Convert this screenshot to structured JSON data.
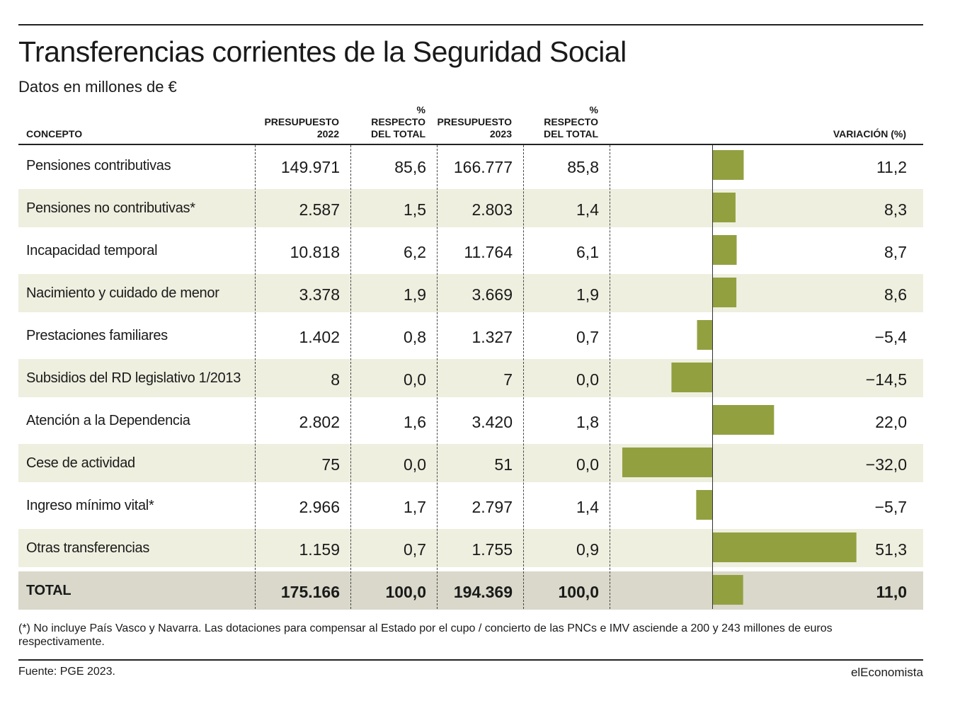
{
  "title": "Transferencias corrientes de la Seguridad Social",
  "subtitle": "Datos en millones de €",
  "headers": {
    "concepto": "CONCEPTO",
    "p2022_l1": "PRESUPUESTO",
    "p2022_l2": "2022",
    "pct2022_l1": "%",
    "pct2022_l2": "RESPECTO",
    "pct2022_l3": "DEL TOTAL",
    "p2023_l1": "PRESUPUESTO",
    "p2023_l2": "2023",
    "pct2023_l1": "%",
    "pct2023_l2": "RESPECTO",
    "pct2023_l3": "DEL TOTAL",
    "variacion": "VARIACIÓN (%)"
  },
  "bar_color": "#93a040",
  "chart_data": {
    "type": "table",
    "columns": [
      "CONCEPTO",
      "PRESUPUESTO 2022",
      "% RESPECTO DEL TOTAL",
      "PRESUPUESTO 2023",
      "% RESPECTO DEL TOTAL",
      "VARIACIÓN (%)"
    ],
    "rows": [
      {
        "concepto": "Pensiones contributivas",
        "p2022": "149.971",
        "pct2022": "85,6",
        "p2023": "166.777",
        "pct2023": "85,8",
        "var_label": "11,2",
        "var": 11.2
      },
      {
        "concepto": "Pensiones no contributivas*",
        "p2022": "2.587",
        "pct2022": "1,5",
        "p2023": "2.803",
        "pct2023": "1,4",
        "var_label": "8,3",
        "var": 8.3
      },
      {
        "concepto": "Incapacidad temporal",
        "p2022": "10.818",
        "pct2022": "6,2",
        "p2023": "11.764",
        "pct2023": "6,1",
        "var_label": "8,7",
        "var": 8.7
      },
      {
        "concepto": "Nacimiento y cuidado de menor",
        "p2022": "3.378",
        "pct2022": "1,9",
        "p2023": "3.669",
        "pct2023": "1,9",
        "var_label": "8,6",
        "var": 8.6
      },
      {
        "concepto": "Prestaciones familiares",
        "p2022": "1.402",
        "pct2022": "0,8",
        "p2023": "1.327",
        "pct2023": "0,7",
        "var_label": "−5,4",
        "var": -5.4
      },
      {
        "concepto": "Subsidios del RD legislativo 1/2013",
        "p2022": "8",
        "pct2022": "0,0",
        "p2023": "7",
        "pct2023": "0,0",
        "var_label": "−14,5",
        "var": -14.5
      },
      {
        "concepto": "Atención a la Dependencia",
        "p2022": "2.802",
        "pct2022": "1,6",
        "p2023": "3.420",
        "pct2023": "1,8",
        "var_label": "22,0",
        "var": 22.0
      },
      {
        "concepto": "Cese de actividad",
        "p2022": "75",
        "pct2022": "0,0",
        "p2023": "51",
        "pct2023": "0,0",
        "var_label": "−32,0",
        "var": -32.0
      },
      {
        "concepto": "Ingreso mínimo vital*",
        "p2022": "2.966",
        "pct2022": "1,7",
        "p2023": "2.797",
        "pct2023": "1,4",
        "var_label": "−5,7",
        "var": -5.7
      },
      {
        "concepto": "Otras transferencias",
        "p2022": "1.159",
        "pct2022": "0,7",
        "p2023": "1.755",
        "pct2023": "0,9",
        "var_label": "51,3",
        "var": 51.3
      },
      {
        "concepto": "TOTAL",
        "p2022": "175.166",
        "pct2022": "100,0",
        "p2023": "194.369",
        "pct2023": "100,0",
        "var_label": "11,0",
        "var": 11.0,
        "total": true
      }
    ]
  },
  "footnote": "(*) No incluye País Vasco y Navarra. Las dotaciones para compensar al Estado por el cupo / concierto de las PNCs e IMV asciende a 200 y 243 millones de euros respectivamente.",
  "source": "Fuente: PGE 2023.",
  "brand": "elEconomista"
}
